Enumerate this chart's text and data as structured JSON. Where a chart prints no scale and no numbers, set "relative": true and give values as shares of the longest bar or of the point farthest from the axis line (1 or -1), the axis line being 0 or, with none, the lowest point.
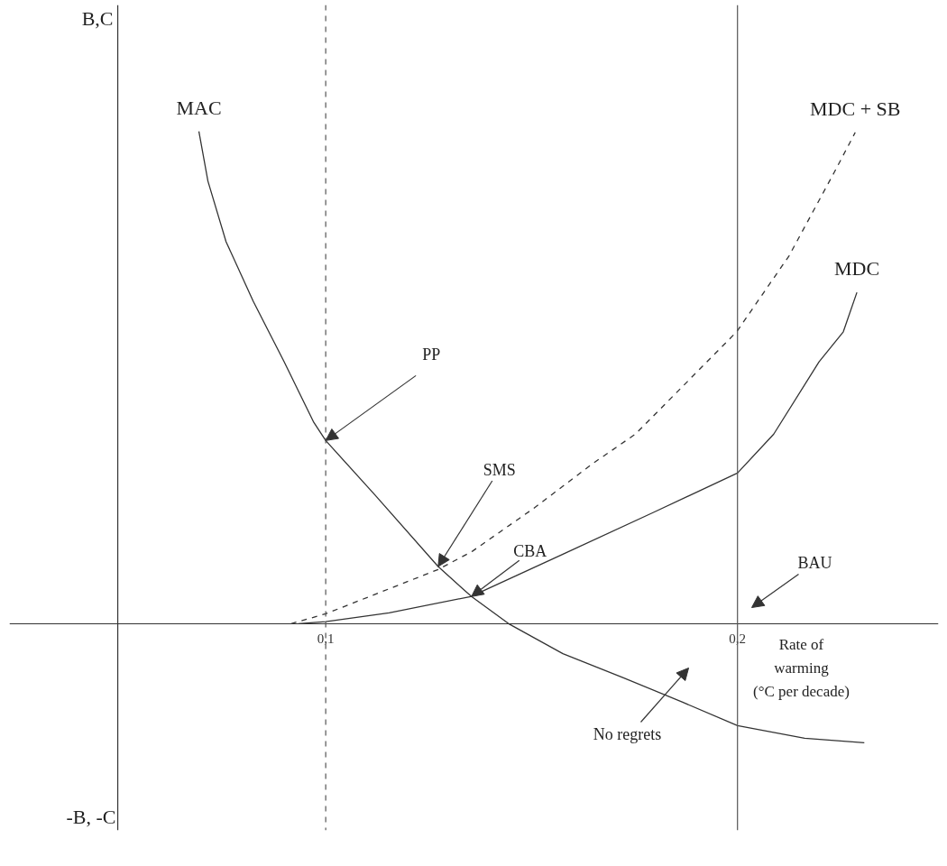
{
  "chart_data": {
    "type": "line",
    "relative": true,
    "xlabel": "Rate of warming (°C per decade)",
    "xlim": [
      0.0232,
      0.2488
    ],
    "xticks": [
      {
        "value": 0.1,
        "label": "0,1"
      },
      {
        "value": 0.2,
        "label": "0,2"
      }
    ],
    "marker": "none",
    "ref_lines": [
      {
        "axis": "x",
        "value": 0.0495,
        "line_style": "solid",
        "color": "#333333"
      },
      {
        "axis": "x",
        "value": 0.1,
        "line_style": "dashed",
        "color": "#555555"
      },
      {
        "axis": "x",
        "value": 0.2,
        "line_style": "solid",
        "color": "#555555"
      }
    ],
    "annotations": [
      "B,C",
      "-B, -C",
      {
        "text": "PP",
        "x": 0.1,
        "y": 0.372
      },
      {
        "text": "SMS",
        "x": 0.1273,
        "y": 0.116
      },
      {
        "text": "CBA",
        "x": 0.1354,
        "y": 0.055
      },
      "BAU",
      "No regrets"
    ],
    "series": [
      {
        "name": "MAC",
        "color": "#333333",
        "line_style": "solid",
        "x": [
          0.0692,
          0.0714,
          0.0758,
          0.0824,
          0.0899,
          0.0971,
          0.1,
          0.1119,
          0.1273,
          0.1354,
          0.1444,
          0.1576,
          0.1723,
          0.1868,
          0.2,
          0.2163,
          0.2308
        ],
        "values": [
          1.0,
          0.899,
          0.776,
          0.655,
          0.532,
          0.409,
          0.372,
          0.262,
          0.116,
          0.055,
          0,
          -0.061,
          -0.11,
          -0.16,
          -0.207,
          -0.233,
          -0.242
        ]
      },
      {
        "name": "MDC + SB",
        "color": "#333333",
        "line_style": "dashed",
        "x": [
          0.0916,
          0.1,
          0.1273,
          0.1356,
          0.1503,
          0.1648,
          0.1752,
          0.1998,
          0.2125,
          0.2235,
          0.2286
        ],
        "values": [
          0,
          0.02,
          0.11,
          0.147,
          0.233,
          0.325,
          0.385,
          0.593,
          0.747,
          0.917,
          0.998
        ]
      },
      {
        "name": "MDC",
        "color": "#333333",
        "line_style": "solid",
        "x": [
          0.0934,
          0.1,
          0.1154,
          0.1352,
          0.1576,
          0.1796,
          0.2,
          0.2088,
          0.2198,
          0.2257,
          0.229
        ],
        "values": [
          0,
          0.004,
          0.022,
          0.055,
          0.141,
          0.226,
          0.306,
          0.385,
          0.532,
          0.593,
          0.673
        ]
      }
    ]
  }
}
